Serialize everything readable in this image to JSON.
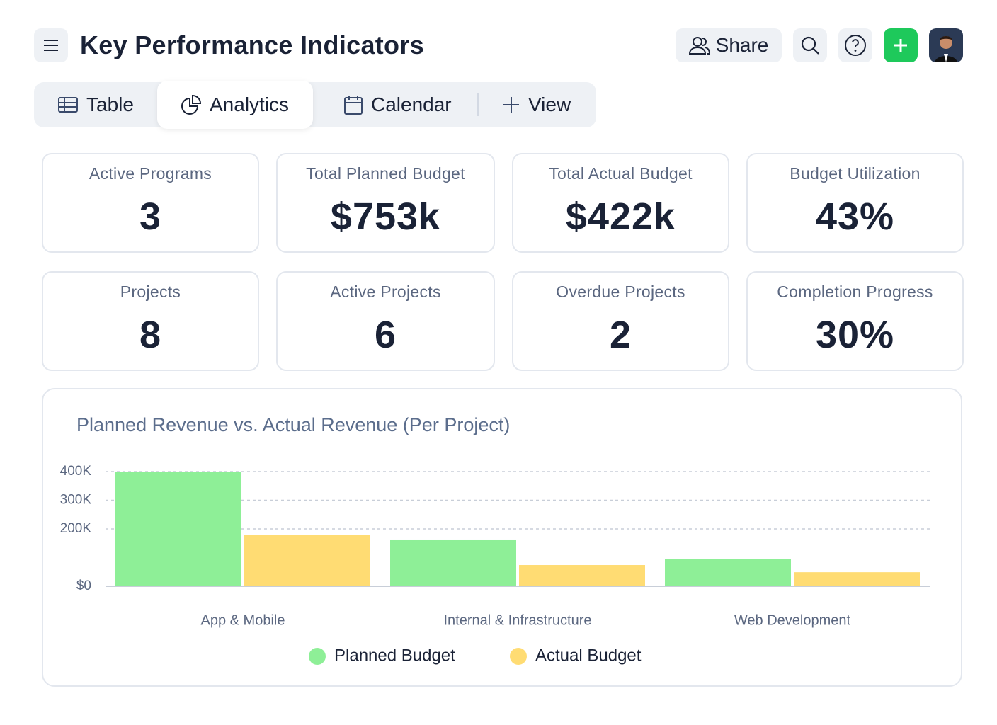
{
  "header": {
    "title": "Key Performance Indicators",
    "share": "Share"
  },
  "tabs": [
    "Table",
    "Analytics",
    "Calendar",
    "View"
  ],
  "kpis": [
    {
      "label": "Active Programs",
      "value": "3"
    },
    {
      "label": "Total Planned Budget",
      "value": "$753k"
    },
    {
      "label": "Total Actual Budget",
      "value": "$422k"
    },
    {
      "label": "Budget Utilization",
      "value": "43%"
    },
    {
      "label": "Projects",
      "value": "8"
    },
    {
      "label": "Active Projects",
      "value": "6"
    },
    {
      "label": "Overdue Projects",
      "value": "2"
    },
    {
      "label": "Completion Progress",
      "value": "30%"
    }
  ],
  "chart_data": {
    "type": "bar",
    "title": "Planned Revenue vs. Actual Revenue (Per Project)",
    "categories": [
      "App & Mobile",
      "Internal & Infrastructure",
      "Web Development"
    ],
    "series": [
      {
        "name": "Planned Budget",
        "color": "#8eef97",
        "values": [
          400000,
          163000,
          94000
        ]
      },
      {
        "name": "Actual Budget",
        "color": "#ffdc73",
        "values": [
          178000,
          74000,
          49000
        ]
      }
    ],
    "ylim": [
      0,
      400000
    ],
    "yticks": [
      {
        "value": 0,
        "label": "$0"
      },
      {
        "value": 200000,
        "label": "200K"
      },
      {
        "value": 300000,
        "label": "300K"
      },
      {
        "value": 400000,
        "label": "400K"
      }
    ],
    "grid": true,
    "legend": "bottom"
  }
}
